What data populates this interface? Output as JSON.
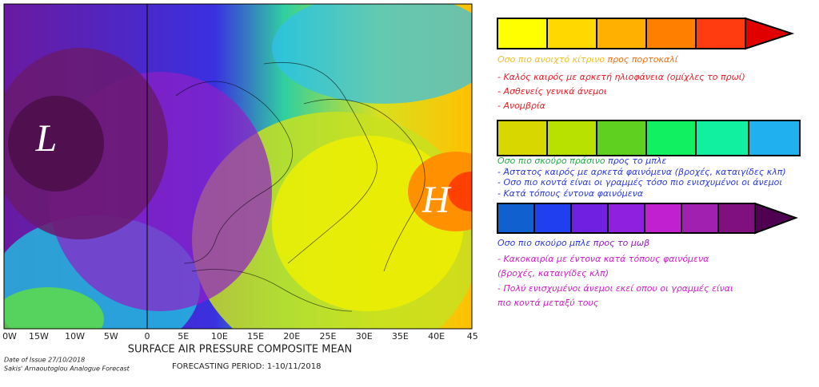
{
  "map": {
    "low_label": "L",
    "high_label": "H",
    "lon_labels": [
      "0W",
      "15W",
      "10W",
      "5W",
      "0",
      "5E",
      "10E",
      "15E",
      "20E",
      "25E",
      "30E",
      "35E",
      "40E",
      "45"
    ],
    "title": "SURFACE AIR PRESSURE COMPOSITE MEAN",
    "issue_date": "Date of Issue 27/10/2018",
    "author": "Sakis' Arnaoutoglou Analogue Forecast",
    "period": "FORECASTING PERIOD: 1-10/11/2018"
  },
  "legend": [
    {
      "lead": "Οσο πιο ανοιχτό κίτρινο",
      "lead_to": "προς πορτοκαλί",
      "items": [
        "- Καλός καιρός με αρκετή ηλιοφάνεια (ομίχλες το πρωί)",
        "- Ασθενείς γενικά άνεμοι",
        "- Ανομβρία"
      ]
    },
    {
      "lead": "Οσο πιο σκούρο πράσινο",
      "lead_to": "προς το μπλε",
      "items": [
        "- Άστατος καιρός με αρκετά φαινόμενα (βροχές, καταιγίδες κλπ)",
        "- Οσο πιο κοντά είναι οι γραμμές τόσο πιο ενισχυμένοι οι άνεμοι",
        "- Κατά τόπους έντονα φαινόμενα"
      ]
    },
    {
      "lead": "Οσο πιο σκούρο μπλε",
      "lead_to": "προς το μωβ",
      "items": [
        "- Κακοκαιρία με έντονα κατά τόπους φαινόμενα",
        "(βροχές, καταιγίδες κλπ)",
        "- Πολύ ενισχυμένοι άνεμοι εκεί οπου οι γραμμές είναι",
        "πιο κοντά μεταξύ τους"
      ]
    }
  ]
}
